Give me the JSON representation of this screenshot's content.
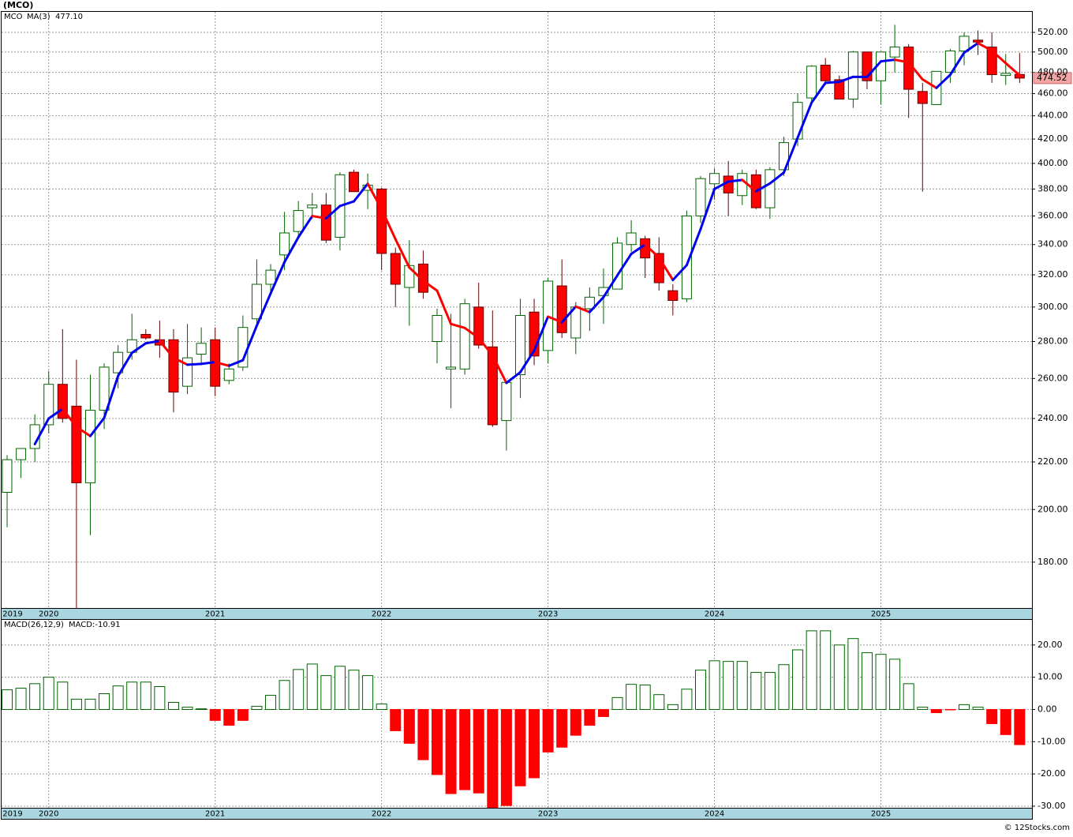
{
  "chart_data": [
    {
      "type": "candlestick",
      "title": "(MCO)",
      "symbol": "MCO",
      "symbol_color": "#006400",
      "categories": [
        "2019",
        null,
        null,
        "2020",
        null,
        null,
        null,
        null,
        null,
        null,
        null,
        null,
        null,
        null,
        null,
        "2021",
        null,
        null,
        null,
        null,
        null,
        null,
        null,
        null,
        null,
        null,
        null,
        "2022",
        null,
        null,
        null,
        null,
        null,
        null,
        null,
        null,
        null,
        null,
        null,
        "2023",
        null,
        null,
        null,
        null,
        null,
        null,
        null,
        null,
        null,
        null,
        null,
        "2024",
        null,
        null,
        null,
        null,
        null,
        null,
        null,
        null,
        null,
        null,
        null,
        "2025",
        null,
        null,
        null,
        null,
        null,
        null,
        null,
        null,
        null,
        null
      ],
      "open": [
        207,
        221,
        226,
        237,
        257,
        246,
        211,
        244,
        263,
        274,
        284,
        281,
        281,
        256,
        273,
        281,
        259,
        266,
        293,
        314,
        333,
        349,
        366,
        368,
        345,
        393,
        379,
        380,
        334,
        312,
        327,
        280,
        265,
        265,
        300,
        277,
        239,
        262,
        297,
        275,
        313,
        282,
        299,
        307,
        311,
        340,
        344,
        334,
        310,
        305,
        360,
        384,
        390,
        375,
        391,
        366,
        395,
        420,
        456,
        487,
        473,
        455,
        500,
        472,
        495,
        505,
        462,
        450,
        480,
        501,
        512,
        505,
        477,
        478
      ],
      "high": [
        223,
        226,
        242,
        264,
        287,
        270,
        262,
        268,
        278,
        296,
        287,
        292,
        287,
        290,
        288,
        288,
        268,
        295,
        330,
        327,
        363,
        371,
        377,
        377,
        393,
        395,
        392,
        381,
        338,
        343,
        336,
        299,
        296,
        305,
        315,
        298,
        258,
        305,
        305,
        318,
        330,
        303,
        312,
        324,
        345,
        357,
        346,
        345,
        314,
        364,
        390,
        396,
        402,
        395,
        395,
        397,
        422,
        460,
        487,
        494,
        477,
        501,
        500,
        500,
        528,
        508,
        470,
        481,
        503,
        520,
        522,
        520,
        498,
        499
      ],
      "low": [
        193,
        213,
        220,
        233,
        238,
        164,
        190,
        235,
        255,
        270,
        281,
        271,
        243,
        252,
        268,
        251,
        257,
        264,
        290,
        309,
        323,
        346,
        358,
        341,
        336,
        379,
        365,
        323,
        300,
        289,
        305,
        268,
        245,
        262,
        276,
        236,
        225,
        250,
        267,
        268,
        282,
        273,
        286,
        290,
        311,
        335,
        318,
        310,
        295,
        303,
        355,
        372,
        360,
        368,
        365,
        358,
        390,
        414,
        451,
        468,
        455,
        447,
        464,
        450,
        480,
        438,
        378,
        450,
        470,
        487,
        497,
        470,
        468,
        470
      ],
      "close": [
        221,
        226,
        237,
        257,
        240,
        211,
        244,
        266,
        274,
        281,
        282,
        278,
        253,
        271,
        279,
        256,
        265,
        288,
        314,
        323,
        348,
        364,
        368,
        343,
        391,
        378,
        383,
        334,
        314,
        326,
        309,
        295,
        266,
        302,
        278,
        237,
        258,
        295,
        272,
        316,
        285,
        300,
        306,
        312,
        341,
        348,
        331,
        315,
        304,
        360,
        388,
        392,
        377,
        392,
        366,
        395,
        417,
        452,
        486,
        472,
        455,
        500,
        472,
        500,
        505,
        464,
        451,
        481,
        501,
        516,
        510,
        477.8,
        479,
        474.52
      ],
      "up_color": "#006400",
      "down_color": "#ff0000",
      "ma": {
        "name": "MA(3)",
        "label": "477.10",
        "up_color": "#0000ee",
        "down_color": "#ff0000",
        "values": [
          null,
          null,
          228,
          240,
          244.7,
          236,
          231.7,
          240.3,
          261.3,
          273.7,
          279,
          280.3,
          271,
          267.3,
          267.7,
          268.7,
          266.7,
          269.7,
          289,
          308.3,
          328.3,
          345,
          360,
          358.3,
          367.3,
          370.7,
          384,
          365,
          343.7,
          324.7,
          316.3,
          310,
          290,
          287.7,
          282,
          272.3,
          257.7,
          263.3,
          275,
          294.3,
          291,
          300.3,
          297,
          306,
          319.7,
          333.7,
          340,
          331.3,
          316.7,
          326.3,
          350.7,
          380,
          385.7,
          387,
          378.3,
          384.3,
          392.7,
          421.3,
          451.7,
          470,
          471,
          475.7,
          475.7,
          490.7,
          492.3,
          489.7,
          473.3,
          465.3,
          477.7,
          499.3,
          509,
          501.3,
          488.9,
          477.1
        ]
      },
      "last_color": "#f4a6a6",
      "ylim": [
        164.2,
        542.7
      ],
      "log_scale": true,
      "grid": true,
      "yticks": [
        {
          "value": 180,
          "label": "180.00"
        },
        {
          "value": 200,
          "label": "200.00"
        },
        {
          "value": 220,
          "label": "220.00"
        },
        {
          "value": 240,
          "label": "240.00"
        },
        {
          "value": 260,
          "label": "260.00"
        },
        {
          "value": 280,
          "label": "280.00"
        },
        {
          "value": 300,
          "label": "300.00"
        },
        {
          "value": 320,
          "label": "320.00"
        },
        {
          "value": 340,
          "label": "340.00"
        },
        {
          "value": 360,
          "label": "360.00"
        },
        {
          "value": 380,
          "label": "380.00"
        },
        {
          "value": 400,
          "label": "400.00"
        },
        {
          "value": 420,
          "label": "420.00"
        },
        {
          "value": 440,
          "label": "440.00"
        },
        {
          "value": 460,
          "label": "460.00"
        },
        {
          "value": 480,
          "label": "480.00"
        },
        {
          "value": 500,
          "label": "500.00"
        },
        {
          "value": 520,
          "label": "520.00"
        }
      ]
    },
    {
      "type": "bar",
      "title": "MACD(26,12,9)",
      "value_label": "MACD:-10.91",
      "values": [
        6.1,
        6.6,
        8,
        10,
        8.5,
        3.2,
        3.2,
        4.9,
        7.3,
        8.5,
        8.5,
        7.1,
        2.2,
        0.7,
        0.2,
        -3.4,
        -4.9,
        -3.4,
        1,
        4.4,
        9,
        12.4,
        14.1,
        10.5,
        13.4,
        12.2,
        10.5,
        1.7,
        -6.6,
        -10.5,
        -15.6,
        -20.2,
        -26.1,
        -24.9,
        -25.9,
        -30.4,
        -29.8,
        -23.7,
        -21.2,
        -13.2,
        -11.7,
        -8,
        -4.9,
        -2.2,
        3.7,
        7.8,
        7.6,
        4.6,
        1.5,
        6.3,
        12.2,
        15.1,
        14.9,
        14.9,
        11.5,
        11.5,
        13.9,
        18.5,
        24.4,
        24.4,
        20,
        22,
        17.6,
        17.1,
        15.6,
        8,
        0.7,
        -1,
        -0.1,
        1.5,
        0.7,
        -4.4,
        -7.8,
        -10.91
      ],
      "up_color": "#006400",
      "down_color": "#ff0000",
      "ylim": [
        -30.5,
        27.8
      ],
      "grid": true,
      "yticks": [
        {
          "value": -30,
          "label": "-30.00"
        },
        {
          "value": -20,
          "label": "-20.00"
        },
        {
          "value": -10,
          "label": "-10.00"
        },
        {
          "value": 0,
          "label": "0.00"
        },
        {
          "value": 10,
          "label": "10.00"
        },
        {
          "value": 20,
          "label": "20.00"
        }
      ]
    }
  ],
  "footer": "© 12Stocks.com"
}
